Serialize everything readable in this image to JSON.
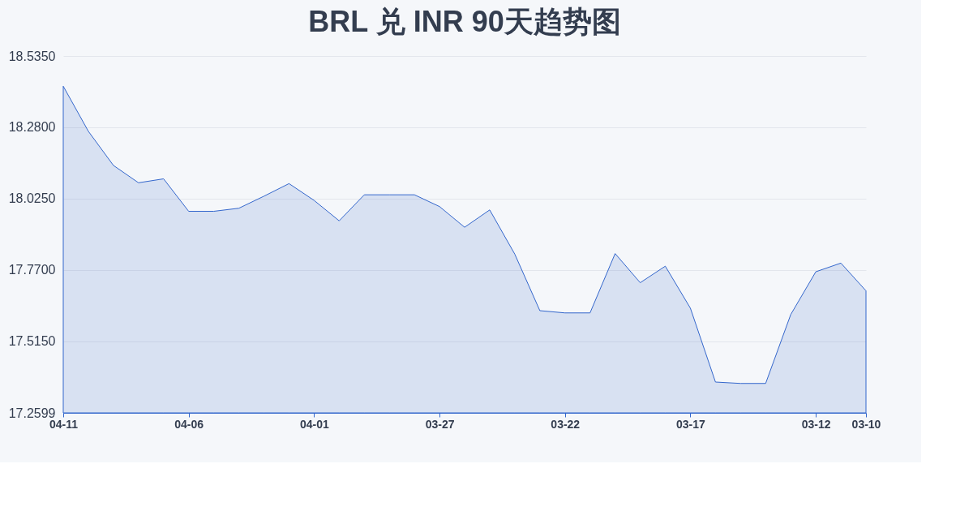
{
  "chart_data": {
    "type": "area",
    "title": "BRL 兑 INR 90天趋势图",
    "categories": [
      "04-11",
      null,
      null,
      null,
      null,
      "04-06",
      null,
      null,
      null,
      null,
      "04-01",
      null,
      null,
      null,
      null,
      "03-27",
      null,
      null,
      null,
      null,
      "03-22",
      null,
      null,
      null,
      null,
      "03-17",
      null,
      null,
      null,
      null,
      "03-12",
      null,
      "03-10"
    ],
    "series": [
      {
        "color": "#3366cc",
        "values": [
          18.427,
          18.266,
          18.144,
          18.082,
          18.096,
          17.98,
          17.98,
          17.991,
          18.034,
          18.079,
          18.019,
          17.946,
          18.039,
          18.039,
          18.039,
          17.997,
          17.923,
          17.985,
          17.827,
          17.625,
          17.617,
          17.617,
          17.829,
          17.725,
          17.784,
          17.634,
          17.37,
          17.365,
          17.365,
          17.611,
          17.764,
          17.795,
          17.696
        ]
      }
    ],
    "ylim": [
      17.2599,
      18.535
    ],
    "yticks": [
      {
        "value": 17.2599,
        "label": "17.2599"
      },
      {
        "value": 17.515,
        "label": "17.5150"
      },
      {
        "value": 17.77,
        "label": "17.7700"
      },
      {
        "value": 18.025,
        "label": "18.0250"
      },
      {
        "value": 18.28,
        "label": "18.2800"
      },
      {
        "value": 18.535,
        "label": "18.5350"
      }
    ],
    "grid": "y"
  }
}
